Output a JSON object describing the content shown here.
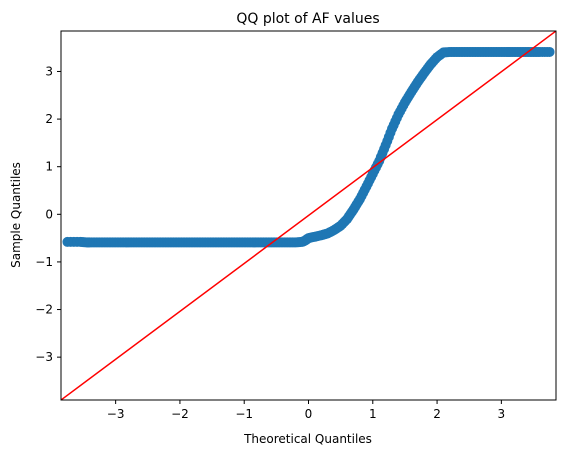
{
  "chart_data": {
    "type": "scatter",
    "title": "QQ plot of AF values",
    "xlabel": "Theoretical Quantiles",
    "ylabel": "Sample Quantiles",
    "xlim": [
      -3.85,
      3.85
    ],
    "ylim": [
      -3.9,
      3.85
    ],
    "xticks": [
      -3,
      -2,
      -1,
      0,
      1,
      2,
      3
    ],
    "yticks": [
      -3,
      -2,
      -1,
      0,
      1,
      2,
      3
    ],
    "xtick_labels": [
      "−3",
      "−2",
      "−1",
      "0",
      "1",
      "2",
      "3"
    ],
    "ytick_labels": [
      "−3",
      "−2",
      "−1",
      "0",
      "1",
      "2",
      "3"
    ],
    "grid": false,
    "series": [
      {
        "role": "sample points",
        "color": "#1f77b4",
        "points": [
          [
            -3.75,
            -0.58
          ],
          [
            -3.55,
            -0.58
          ],
          [
            -3.45,
            -0.59
          ],
          [
            -3.4,
            -0.59
          ],
          [
            -3.3,
            -0.59
          ],
          [
            -3.2,
            -0.59
          ],
          [
            -3.1,
            -0.59
          ],
          [
            -3.0,
            -0.59
          ],
          [
            -2.9,
            -0.59
          ],
          [
            -2.8,
            -0.59
          ],
          [
            -2.7,
            -0.59
          ],
          [
            -2.6,
            -0.59
          ],
          [
            -2.5,
            -0.59
          ],
          [
            -2.4,
            -0.59
          ],
          [
            -2.3,
            -0.59
          ],
          [
            -2.2,
            -0.59
          ],
          [
            -2.1,
            -0.59
          ],
          [
            -2.0,
            -0.59
          ],
          [
            -1.9,
            -0.59
          ],
          [
            -1.8,
            -0.59
          ],
          [
            -1.7,
            -0.59
          ],
          [
            -1.6,
            -0.59
          ],
          [
            -1.5,
            -0.59
          ],
          [
            -1.4,
            -0.59
          ],
          [
            -1.3,
            -0.59
          ],
          [
            -1.2,
            -0.59
          ],
          [
            -1.1,
            -0.59
          ],
          [
            -1.0,
            -0.59
          ],
          [
            -0.9,
            -0.59
          ],
          [
            -0.8,
            -0.59
          ],
          [
            -0.7,
            -0.59
          ],
          [
            -0.6,
            -0.59
          ],
          [
            -0.5,
            -0.59
          ],
          [
            -0.4,
            -0.59
          ],
          [
            -0.3,
            -0.59
          ],
          [
            -0.2,
            -0.59
          ],
          [
            -0.1,
            -0.58
          ],
          [
            -0.05,
            -0.55
          ],
          [
            0.0,
            -0.5
          ],
          [
            0.1,
            -0.47
          ],
          [
            0.2,
            -0.44
          ],
          [
            0.3,
            -0.4
          ],
          [
            0.4,
            -0.33
          ],
          [
            0.5,
            -0.24
          ],
          [
            0.6,
            -0.1
          ],
          [
            0.7,
            0.1
          ],
          [
            0.8,
            0.32
          ],
          [
            0.9,
            0.58
          ],
          [
            1.0,
            0.85
          ],
          [
            1.1,
            1.12
          ],
          [
            1.2,
            1.45
          ],
          [
            1.3,
            1.8
          ],
          [
            1.4,
            2.1
          ],
          [
            1.5,
            2.35
          ],
          [
            1.6,
            2.57
          ],
          [
            1.7,
            2.78
          ],
          [
            1.8,
            2.97
          ],
          [
            1.9,
            3.15
          ],
          [
            2.0,
            3.3
          ],
          [
            2.1,
            3.4
          ],
          [
            2.2,
            3.41
          ],
          [
            2.3,
            3.41
          ],
          [
            2.4,
            3.41
          ],
          [
            2.5,
            3.41
          ],
          [
            2.6,
            3.41
          ],
          [
            2.7,
            3.41
          ],
          [
            2.8,
            3.41
          ],
          [
            2.9,
            3.41
          ],
          [
            3.0,
            3.41
          ],
          [
            3.1,
            3.41
          ],
          [
            3.2,
            3.41
          ],
          [
            3.3,
            3.41
          ],
          [
            3.4,
            3.41
          ],
          [
            3.5,
            3.41
          ],
          [
            3.6,
            3.41
          ],
          [
            3.75,
            3.41
          ]
        ]
      },
      {
        "role": "reference line",
        "color": "#ff0000",
        "points": [
          [
            -3.85,
            -3.9
          ],
          [
            3.85,
            3.85
          ]
        ]
      }
    ]
  }
}
